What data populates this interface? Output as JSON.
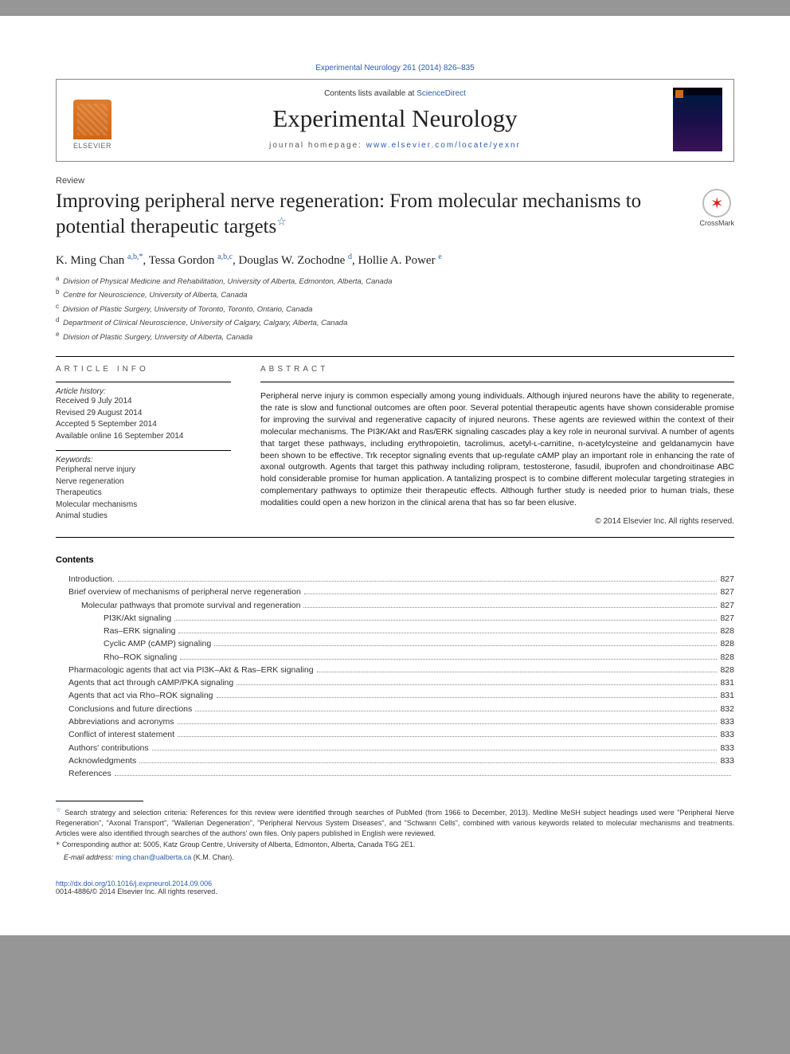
{
  "journal_ref": {
    "prefix": "",
    "link_text": "Experimental Neurology 261 (2014) 826–835"
  },
  "header": {
    "contents_prefix": "Contents lists available at ",
    "contents_link": "ScienceDirect",
    "journal_name": "Experimental Neurology",
    "homepage_prefix": "journal homepage: ",
    "homepage_link": "www.elsevier.com/locate/yexnr",
    "publisher_name": "ELSEVIER"
  },
  "article": {
    "section_label": "Review",
    "title": "Improving peripheral nerve regeneration: From molecular mechanisms to potential therapeutic targets",
    "crossmark_label": "CrossMark",
    "authors": [
      {
        "name": "K. Ming Chan",
        "aff": "a,b,",
        "corr": true
      },
      {
        "name": "Tessa Gordon",
        "aff": "a,b,c"
      },
      {
        "name": "Douglas W. Zochodne",
        "aff": "d"
      },
      {
        "name": "Hollie A. Power",
        "aff": "e"
      }
    ],
    "affiliations": [
      {
        "sup": "a",
        "text": "Division of Physical Medicine and Rehabilitation, University of Alberta, Edmonton, Alberta, Canada"
      },
      {
        "sup": "b",
        "text": "Centre for Neuroscience, University of Alberta, Canada"
      },
      {
        "sup": "c",
        "text": "Division of Plastic Surgery, University of Toronto, Toronto, Ontario, Canada"
      },
      {
        "sup": "d",
        "text": "Department of Clinical Neuroscience, University of Calgary, Calgary, Alberta, Canada"
      },
      {
        "sup": "e",
        "text": "Division of Plastic Surgery, University of Alberta, Canada"
      }
    ]
  },
  "info": {
    "heading": "article info",
    "history_label": "Article history:",
    "history": [
      "Received 9 July 2014",
      "Revised 29 August 2014",
      "Accepted 5 September 2014",
      "Available online 16 September 2014"
    ],
    "keywords_label": "Keywords:",
    "keywords": [
      "Peripheral nerve injury",
      "Nerve regeneration",
      "Therapeutics",
      "Molecular mechanisms",
      "Animal studies"
    ]
  },
  "abstract": {
    "heading": "abstract",
    "text": "Peripheral nerve injury is common especially among young individuals. Although injured neurons have the ability to regenerate, the rate is slow and functional outcomes are often poor. Several potential therapeutic agents have shown considerable promise for improving the survival and regenerative capacity of injured neurons. These agents are reviewed within the context of their molecular mechanisms. The PI3K/Akt and Ras/ERK signaling cascades play a key role in neuronal survival. A number of agents that target these pathways, including erythropoietin, tacrolimus, acetyl-ʟ-carnitine, n-acetylcysteine and geldanamycin have been shown to be effective. Trk receptor signaling events that up-regulate cAMP play an important role in enhancing the rate of axonal outgrowth. Agents that target this pathway including rolipram, testosterone, fasudil, ibuprofen and chondroitinase ABC hold considerable promise for human application. A tantalizing prospect is to combine different molecular targeting strategies in complementary pathways to optimize their therapeutic effects. Although further study is needed prior to human trials, these modalities could open a new horizon in the clinical arena that has so far been elusive.",
    "copyright": "© 2014 Elsevier Inc. All rights reserved."
  },
  "contents": {
    "heading": "Contents",
    "items": [
      {
        "label": "Introduction.",
        "page": "827",
        "indent": 1
      },
      {
        "label": "Brief overview of mechanisms of peripheral nerve regeneration",
        "page": "827",
        "indent": 1
      },
      {
        "label": "Molecular pathways that promote survival and regeneration",
        "page": "827",
        "indent": 2
      },
      {
        "label": "PI3K/Akt signaling",
        "page": "827",
        "indent": 3
      },
      {
        "label": "Ras–ERK signaling",
        "page": "828",
        "indent": 3
      },
      {
        "label": "Cyclic AMP (cAMP) signaling",
        "page": "828",
        "indent": 3
      },
      {
        "label": "Rho–ROK signaling",
        "page": "828",
        "indent": 3
      },
      {
        "label": "Pharmacologic agents that act via PI3K–Akt & Ras–ERK signaling",
        "page": "828",
        "indent": 1
      },
      {
        "label": "Agents that act through cAMP/PKA signaling",
        "page": "831",
        "indent": 1
      },
      {
        "label": "Agents that act via Rho–ROK signaling",
        "page": "831",
        "indent": 1
      },
      {
        "label": "Conclusions and future directions",
        "page": "832",
        "indent": 1
      },
      {
        "label": "Abbreviations and acronyms",
        "page": "833",
        "indent": 1
      },
      {
        "label": "Conflict of interest statement",
        "page": "833",
        "indent": 1
      },
      {
        "label": "Authors' contributions",
        "page": "833",
        "indent": 1
      },
      {
        "label": "Acknowledgments",
        "page": "833",
        "indent": 1
      },
      {
        "label": "References",
        "page": "",
        "indent": 1
      }
    ]
  },
  "footnotes": {
    "search_strategy": "Search strategy and selection criteria: References for this review were identified through searches of PubMed (from 1966 to December, 2013). Medline MeSH subject headings used were \"Peripheral Nerve Regeneration\", \"Axonal Transport\", \"Wallerian Degeneration\", \"Peripheral Nervous System Diseases\", and \"Schwann Cells\", combined with various keywords related to molecular mechanisms and treatments. Articles were also identified through searches of the authors' own files. Only papers published in English were reviewed.",
    "corresponding": "Corresponding author at: 5005, Katz Group Centre, University of Alberta, Edmonton, Alberta, Canada T6G 2E1.",
    "email_label": "E-mail address:",
    "email": "ming.chan@ualberta.ca",
    "email_suffix": "(K.M. Chan)."
  },
  "doi": {
    "link": "http://dx.doi.org/10.1016/j.expneurol.2014.09.006",
    "issn_line": "0014-4886/© 2014 Elsevier Inc. All rights reserved."
  },
  "colors": {
    "link": "#2a5db0",
    "text": "#222222",
    "page_bg": "#ffffff",
    "outer_bg": "#969696",
    "elsevier_orange": "#d06818"
  }
}
